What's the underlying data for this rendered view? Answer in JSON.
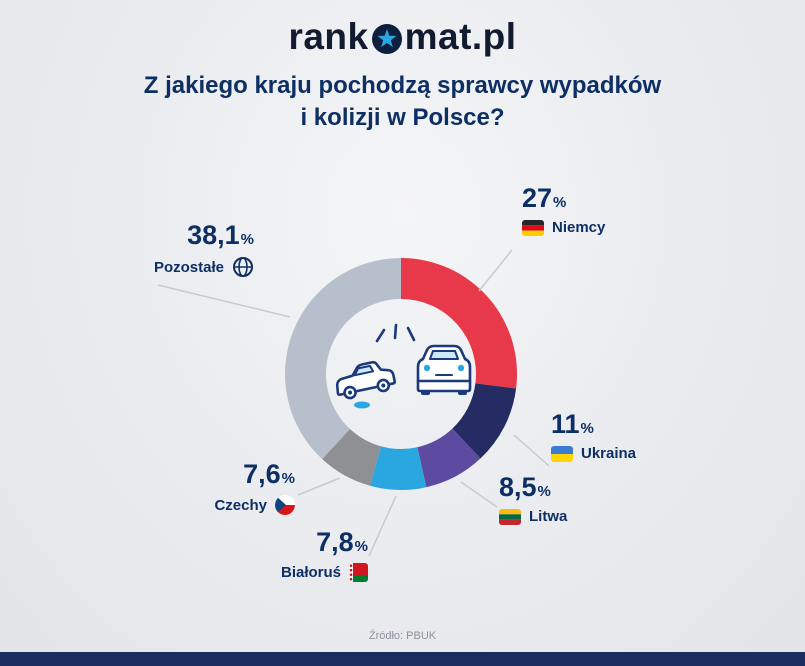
{
  "logo": {
    "text_before": "rank",
    "text_after": "mat.pl",
    "circle_color": "#0d1f3c",
    "star_color": "#2aa7e0"
  },
  "title": {
    "line1": "Z jakiego kraju pochodzą sprawcy wypadków",
    "line2": "i kolizji w Polsce?"
  },
  "source": "Źródło: PBUK",
  "colors": {
    "title_navy": "#0d2f63",
    "accent_blue": "#2aa7e0",
    "footer_navy": "#1c2c5e",
    "leader_line": "#c6cad1"
  },
  "icons": {
    "center": "car-crash-icon",
    "others": "globe-icon"
  },
  "chart_data": {
    "type": "pie",
    "donut": true,
    "title": "Z jakiego kraju pochodzą sprawcy wypadków i kolizji w Polsce?",
    "unit": "%",
    "start_angle_deg": 0,
    "direction": "clockwise",
    "legend_position": "labels-around-chart",
    "source": "Źródło: PBUK",
    "segments": [
      {
        "id": "niemcy",
        "label": "Niemcy",
        "value": 27,
        "display": "27",
        "color": "#e8394a",
        "flag": "germany-flag-icon"
      },
      {
        "id": "ukraina",
        "label": "Ukraina",
        "value": 11,
        "display": "11",
        "color": "#252b63",
        "flag": "ukraine-flag-icon"
      },
      {
        "id": "litwa",
        "label": "Litwa",
        "value": 8.5,
        "display": "8,5",
        "color": "#5c4ba0",
        "flag": "lithuania-flag-icon"
      },
      {
        "id": "bialorus",
        "label": "Białoruś",
        "value": 7.8,
        "display": "7,8",
        "color": "#2aa7e0",
        "flag": "belarus-flag-icon"
      },
      {
        "id": "czechy",
        "label": "Czechy",
        "value": 7.6,
        "display": "7,6",
        "color": "#8e9093",
        "flag": "czech-flag-icon"
      },
      {
        "id": "pozostale",
        "label": "Pozostałe",
        "value": 38.1,
        "display": "38,1",
        "color": "#b7bfcc",
        "flag": "globe-icon"
      }
    ]
  }
}
